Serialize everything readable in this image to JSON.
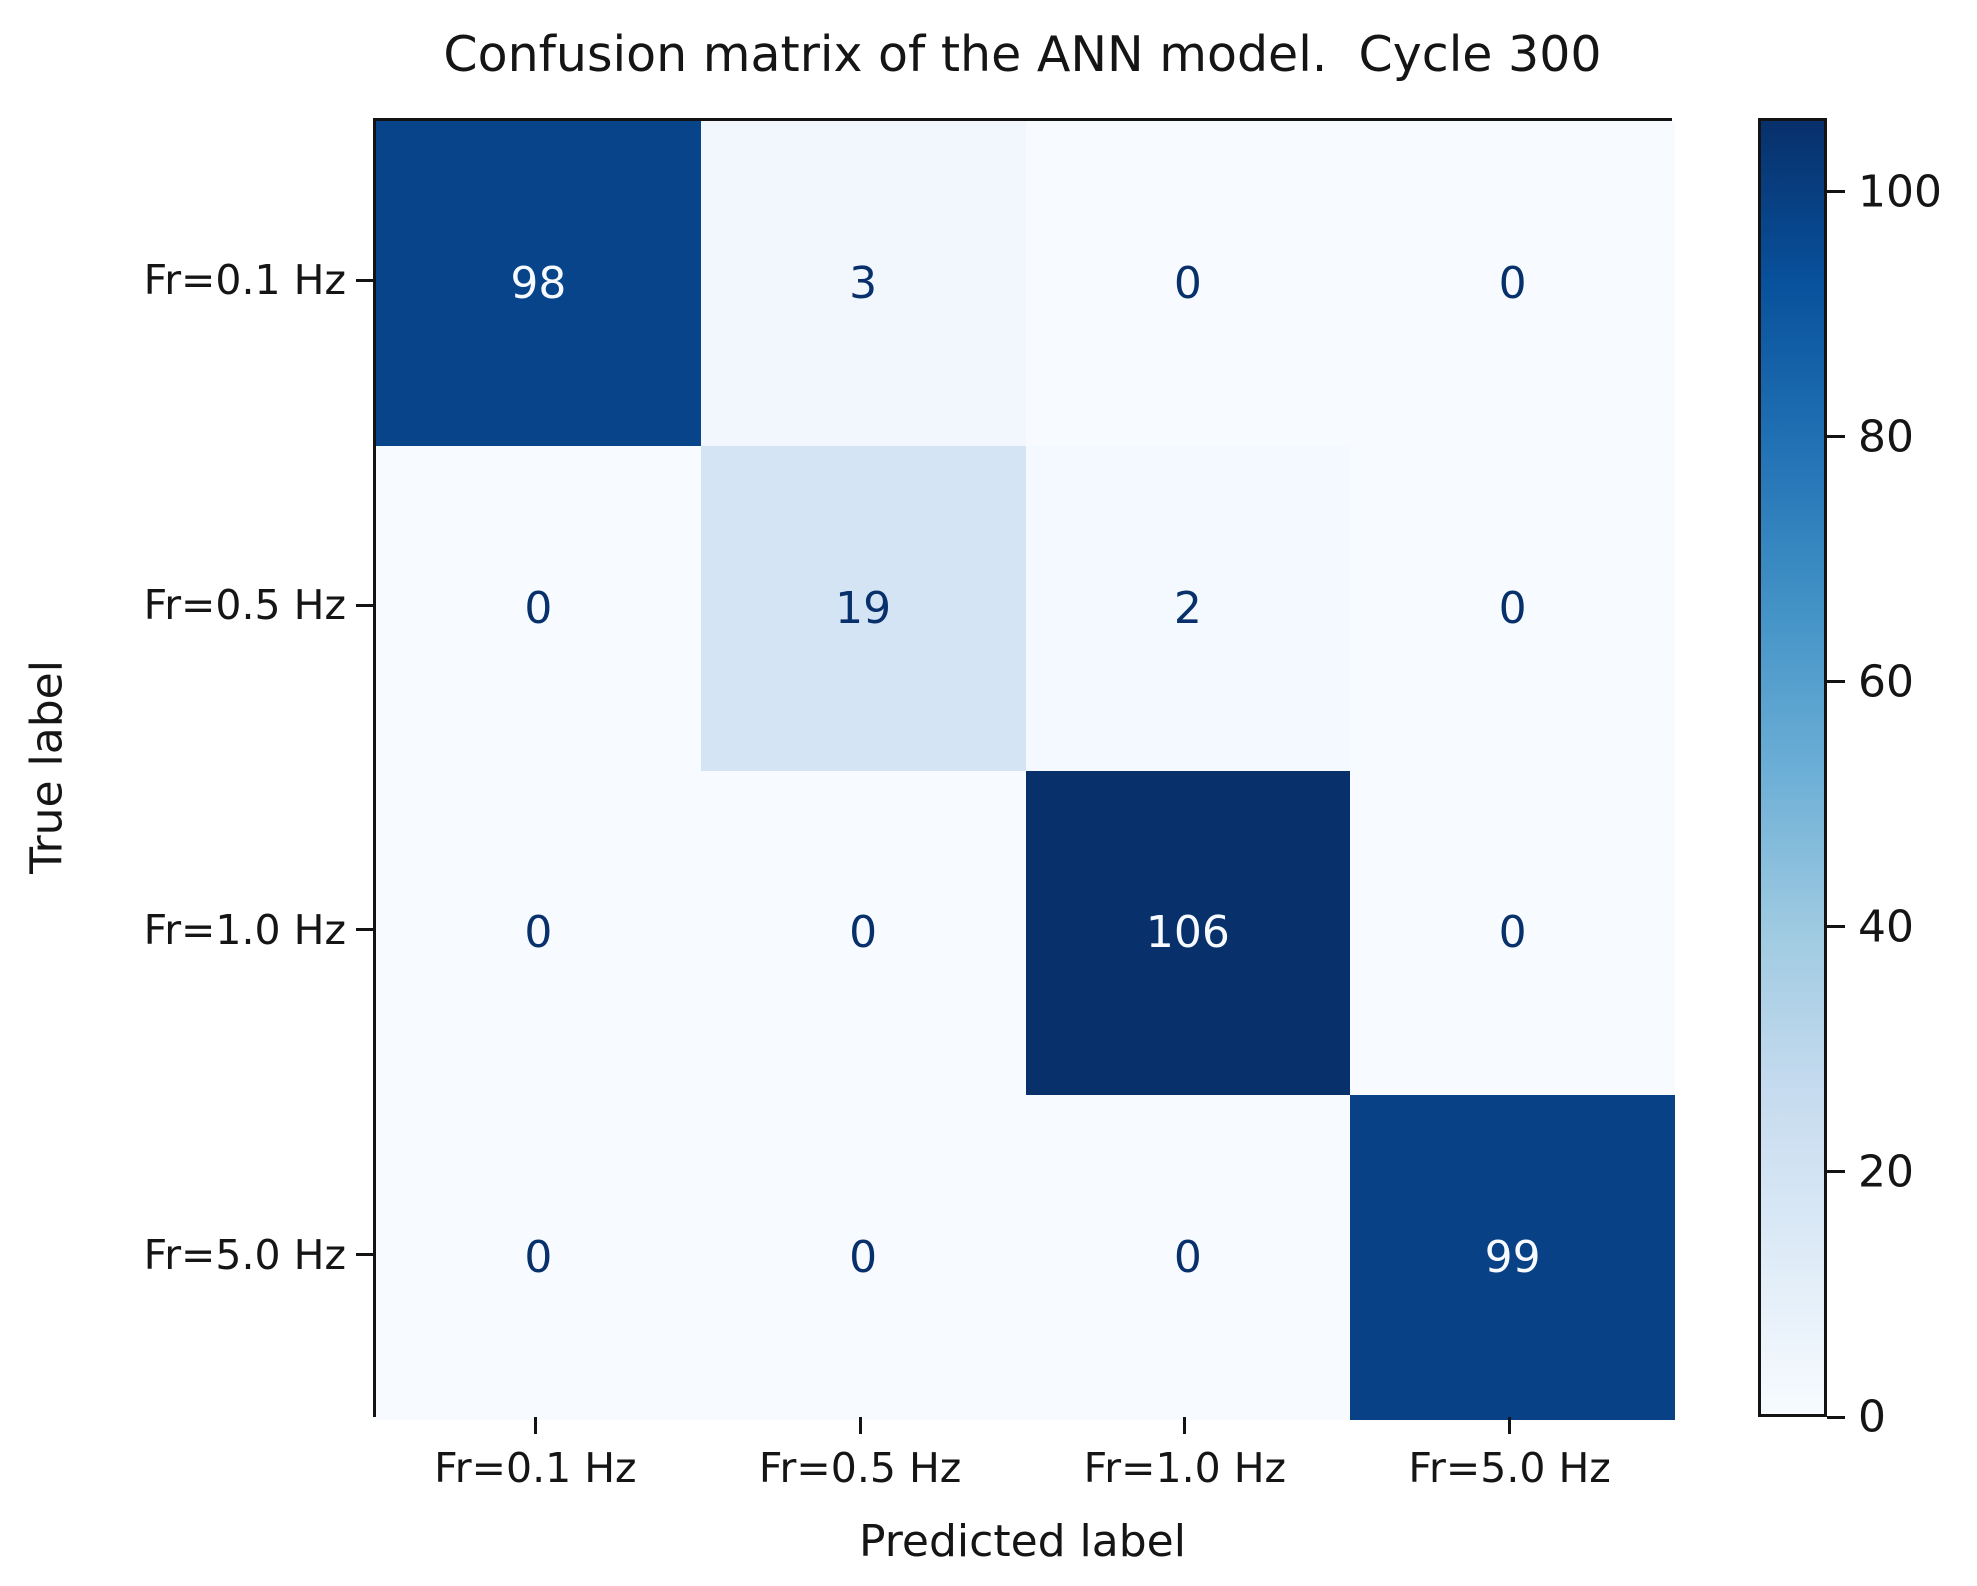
{
  "figure": {
    "title": "Confusion matrix of the ANN model.  Cycle 300",
    "xlabel": "Predicted label",
    "ylabel": "True label"
  },
  "chart_data": {
    "type": "heatmap",
    "title": "Confusion matrix of the ANN model.  Cycle 300",
    "xlabel": "Predicted label",
    "ylabel": "True label",
    "x_categories": [
      "Fr=0.1 Hz",
      "Fr=0.5 Hz",
      "Fr=1.0 Hz",
      "Fr=5.0 Hz"
    ],
    "y_categories": [
      "Fr=0.1 Hz",
      "Fr=0.5 Hz",
      "Fr=1.0 Hz",
      "Fr=5.0 Hz"
    ],
    "matrix": [
      [
        98,
        3,
        0,
        0
      ],
      [
        0,
        19,
        2,
        0
      ],
      [
        0,
        0,
        106,
        0
      ],
      [
        0,
        0,
        0,
        99
      ]
    ],
    "vmin": 0,
    "vmax": 106,
    "colormap": "Blues",
    "colormap_stops": [
      {
        "t": 0.0,
        "color": "#f7fbff"
      },
      {
        "t": 0.125,
        "color": "#deebf7"
      },
      {
        "t": 0.25,
        "color": "#c6dbef"
      },
      {
        "t": 0.375,
        "color": "#9ecae1"
      },
      {
        "t": 0.5,
        "color": "#6baed6"
      },
      {
        "t": 0.625,
        "color": "#4292c6"
      },
      {
        "t": 0.75,
        "color": "#2171b5"
      },
      {
        "t": 0.875,
        "color": "#08519c"
      },
      {
        "t": 1.0,
        "color": "#08306b"
      }
    ],
    "colorbar_ticks": [
      0,
      20,
      40,
      60,
      80,
      100
    ],
    "text_color_on_dark": "#f7fbff",
    "text_color_on_light": "#08306b",
    "text_threshold": 53,
    "grid": false,
    "legend_position": "colorbar-right"
  }
}
